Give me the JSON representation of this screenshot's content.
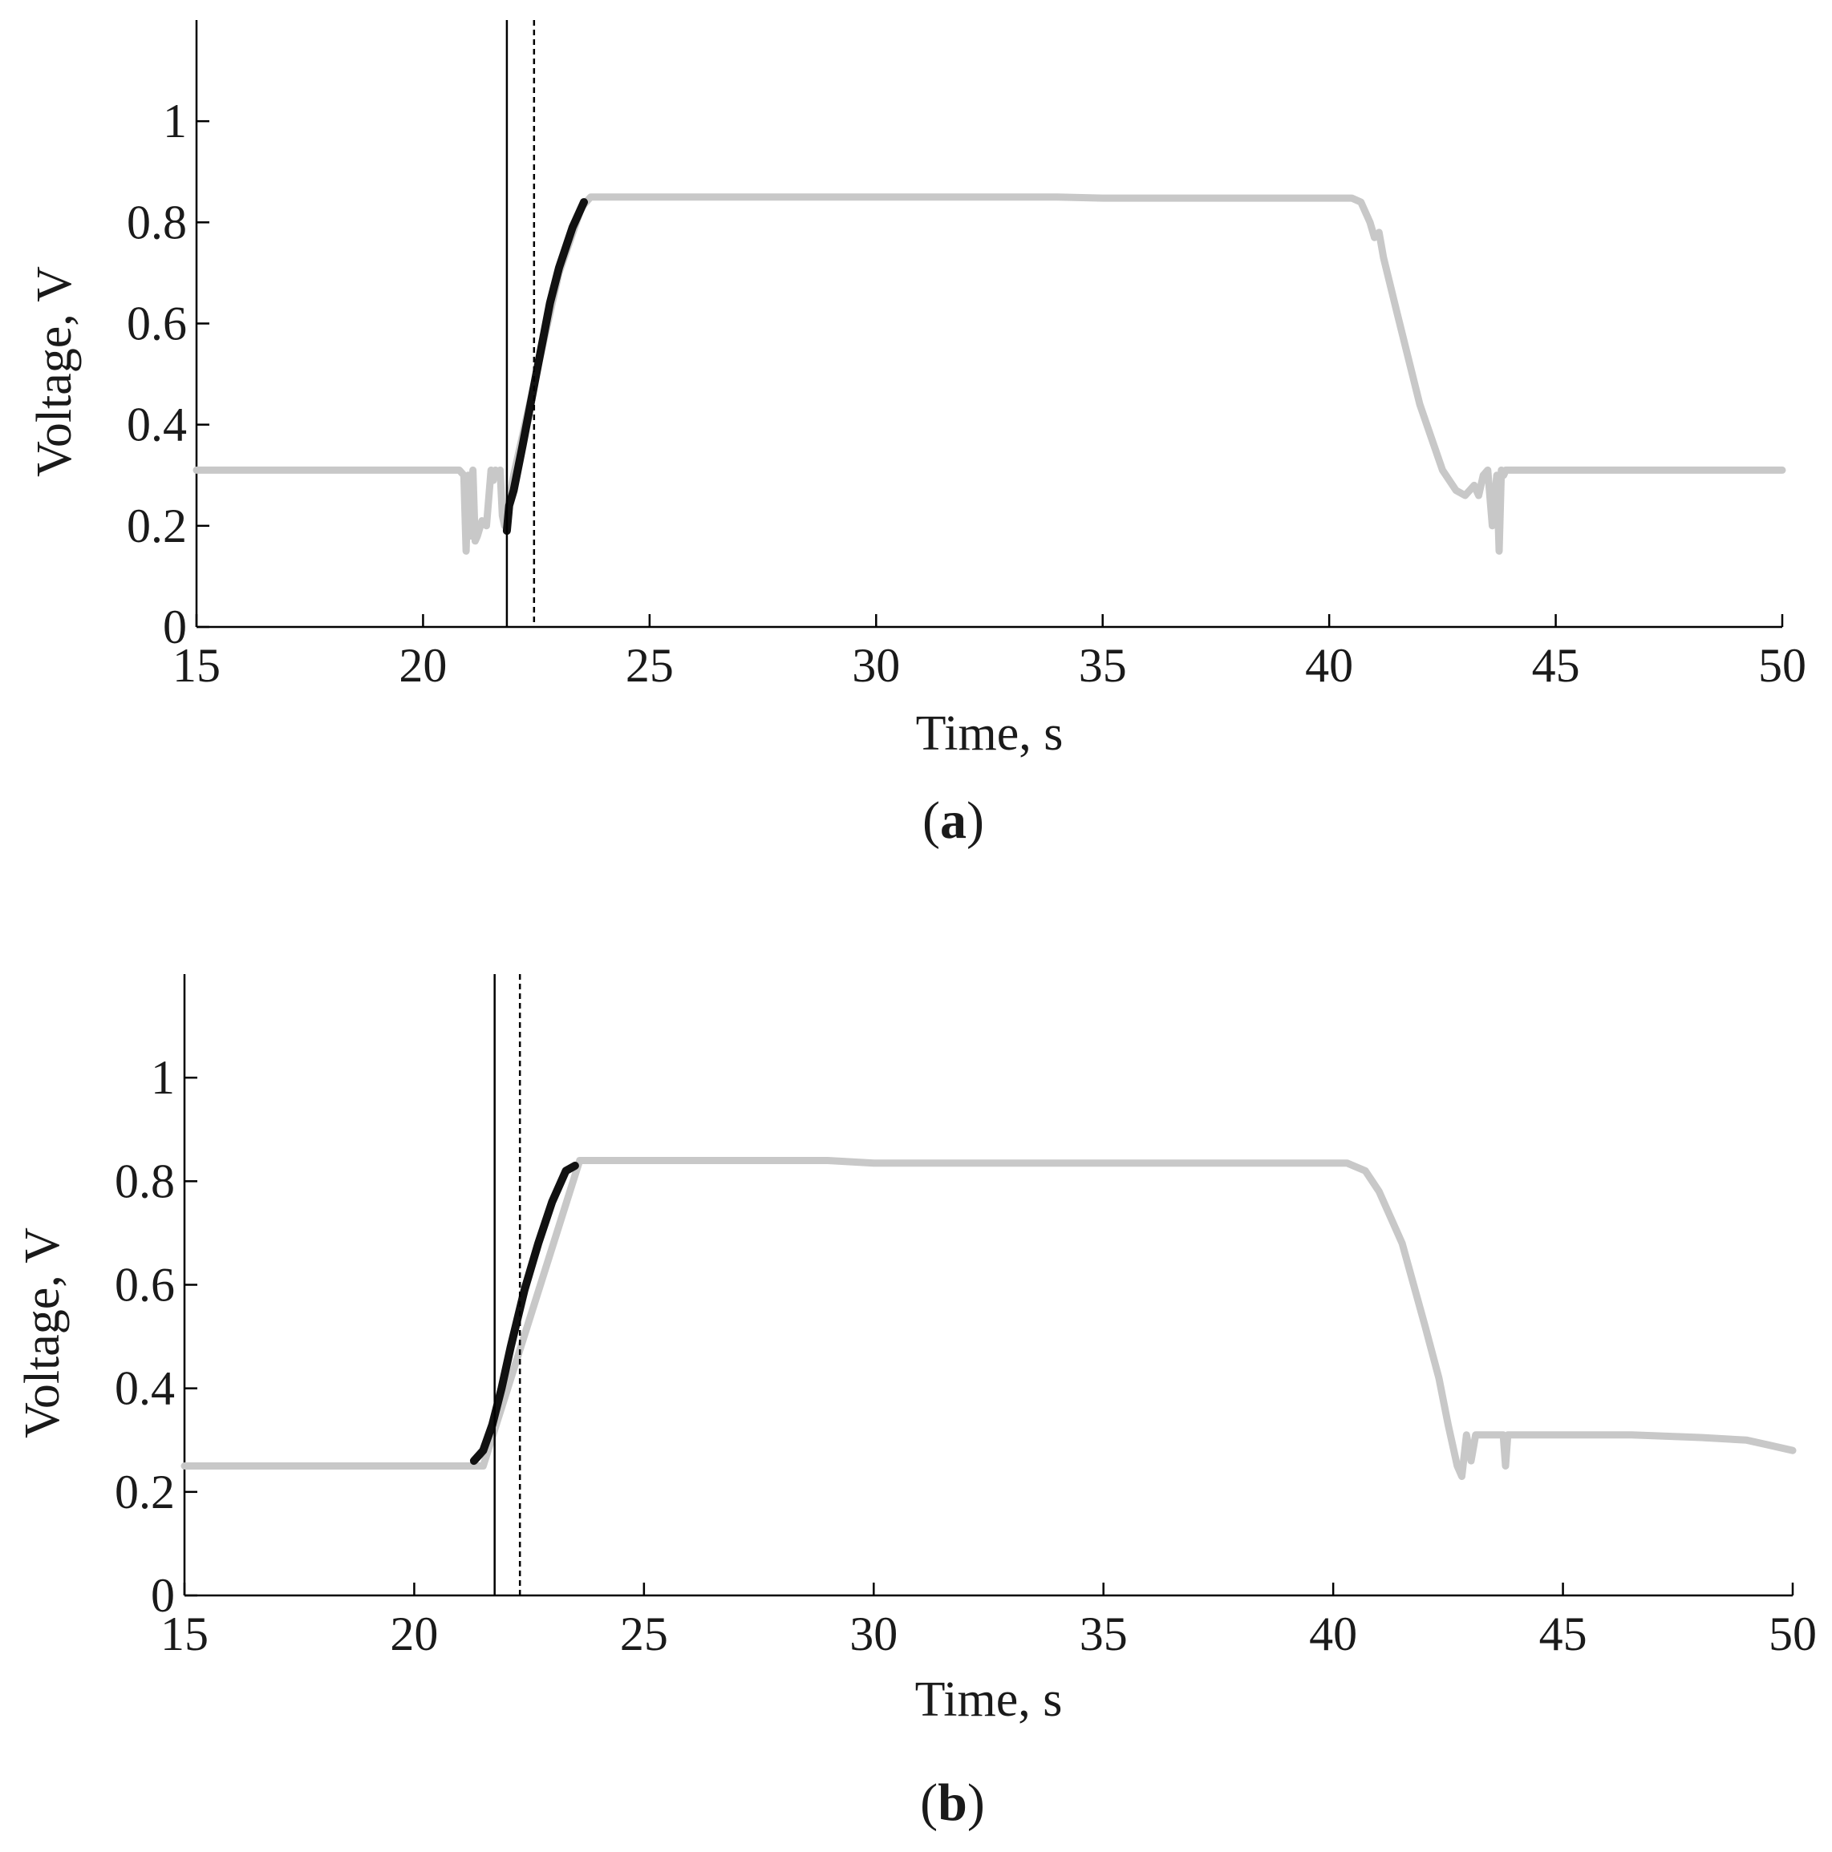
{
  "chart_data": [
    {
      "type": "line",
      "panel_label": "a",
      "xlabel": "Time, s",
      "ylabel": "Voltage, V",
      "xlim": [
        15,
        50
      ],
      "ylim": [
        0,
        1.2
      ],
      "xticks": [
        "15",
        "20",
        "25",
        "30",
        "35",
        "40",
        "45",
        "50"
      ],
      "yticks": [
        "0",
        "0.2",
        "0.4",
        "0.6",
        "0.8",
        "1"
      ],
      "grid": false,
      "vlines": [
        {
          "x": 21.85,
          "style": "solid",
          "color": "#000000"
        },
        {
          "x": 22.45,
          "style": "dashed",
          "color": "#000000"
        }
      ],
      "series": [
        {
          "color": "#c8c8c8",
          "x": [
            15,
            20.7,
            20.8,
            20.9,
            20.95,
            21.0,
            21.05,
            21.1,
            21.15,
            21.2,
            21.3,
            21.4,
            21.5,
            21.55,
            21.6,
            21.65,
            21.7,
            21.75,
            21.8,
            22.0,
            22.5,
            23.0,
            23.5,
            23.7,
            30,
            34,
            35,
            40.5,
            40.7,
            40.9,
            41.0,
            41.1,
            41.2,
            41.5,
            42.0,
            42.5,
            42.8,
            43.0,
            43.2,
            43.3,
            43.4,
            43.5,
            43.6,
            43.7,
            43.75,
            43.8,
            43.85,
            43.9,
            44.0,
            50
          ],
          "y": [
            0.31,
            0.31,
            0.31,
            0.3,
            0.15,
            0.3,
            0.18,
            0.31,
            0.17,
            0.18,
            0.21,
            0.2,
            0.31,
            0.29,
            0.31,
            0.3,
            0.31,
            0.22,
            0.2,
            0.3,
            0.5,
            0.7,
            0.83,
            0.85,
            0.85,
            0.85,
            0.848,
            0.848,
            0.84,
            0.8,
            0.77,
            0.78,
            0.73,
            0.62,
            0.44,
            0.31,
            0.27,
            0.26,
            0.28,
            0.26,
            0.3,
            0.31,
            0.2,
            0.3,
            0.15,
            0.31,
            0.3,
            0.31,
            0.31,
            0.31
          ]
        },
        {
          "color": "#111111",
          "x": [
            21.85,
            21.9,
            22.0,
            22.2,
            22.5,
            22.8,
            23.0,
            23.3,
            23.55
          ],
          "y": [
            0.19,
            0.24,
            0.27,
            0.36,
            0.5,
            0.64,
            0.71,
            0.79,
            0.84
          ]
        }
      ]
    },
    {
      "type": "line",
      "panel_label": "b",
      "xlabel": "Time, s",
      "ylabel": "Voltage, V",
      "xlim": [
        15,
        50
      ],
      "ylim": [
        0,
        1.2
      ],
      "xticks": [
        "15",
        "20",
        "25",
        "30",
        "35",
        "40",
        "45",
        "50"
      ],
      "yticks": [
        "0",
        "0.2",
        "0.4",
        "0.6",
        "0.8",
        "1"
      ],
      "grid": false,
      "vlines": [
        {
          "x": 21.75,
          "style": "solid",
          "color": "#000000"
        },
        {
          "x": 22.3,
          "style": "dashed",
          "color": "#000000"
        }
      ],
      "series": [
        {
          "color": "#c8c8c8",
          "x": [
            15,
            21.4,
            21.5,
            23.6,
            24.0,
            29.0,
            30.0,
            40.3,
            40.7,
            41.0,
            41.5,
            42.0,
            42.3,
            42.5,
            42.7,
            42.8,
            42.9,
            43.0,
            43.1,
            43.6,
            43.7,
            43.75,
            43.8,
            43.9,
            44.0,
            46.5,
            48.0,
            49.0,
            49.5,
            50.0
          ],
          "y": [
            0.25,
            0.25,
            0.25,
            0.84,
            0.84,
            0.84,
            0.835,
            0.835,
            0.82,
            0.78,
            0.68,
            0.52,
            0.42,
            0.33,
            0.25,
            0.23,
            0.31,
            0.26,
            0.31,
            0.31,
            0.31,
            0.25,
            0.31,
            0.31,
            0.31,
            0.31,
            0.305,
            0.3,
            0.29,
            0.28
          ]
        },
        {
          "color": "#111111",
          "x": [
            21.3,
            21.5,
            21.7,
            21.9,
            22.1,
            22.4,
            22.7,
            23.0,
            23.3,
            23.5
          ],
          "y": [
            0.26,
            0.28,
            0.33,
            0.4,
            0.48,
            0.59,
            0.68,
            0.76,
            0.82,
            0.83
          ]
        }
      ]
    }
  ]
}
